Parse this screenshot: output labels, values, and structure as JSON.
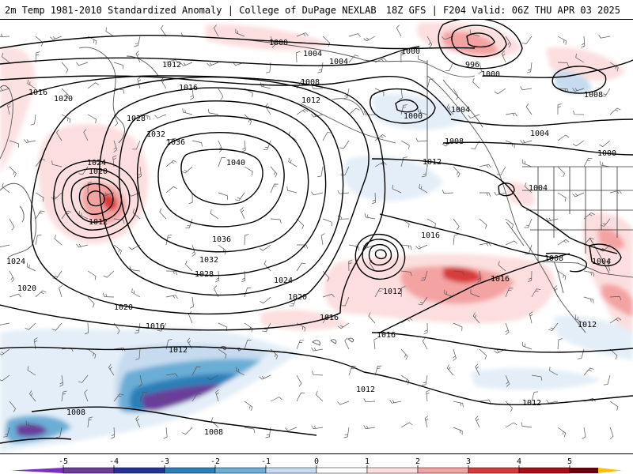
{
  "header": {
    "title_left": "2m Temp 1981-2010 Standardized Anomaly | College of DuPage NEXLAB",
    "title_right": "18Z GFS | F204 Valid: 06Z THU APR 03 2025"
  },
  "colorbar": {
    "ticks": [
      "-5",
      "-4",
      "-3",
      "-2",
      "-1",
      "0",
      "1",
      "2",
      "3",
      "4",
      "5"
    ],
    "colors": [
      "#6a3d9a",
      "#253494",
      "#2c7fb8",
      "#6baed6",
      "#c6dbef",
      "#ffffff",
      "#fcdede",
      "#f4a3a3",
      "#d73a3a",
      "#a50f15",
      "#67000d"
    ],
    "low_end_color": "#7b2fbe",
    "high_end_color": "#f5c400"
  },
  "isobar_labels": [
    {
      "text": "1000",
      "id": "a"
    },
    {
      "text": "1004",
      "id": "b"
    },
    {
      "text": "1004",
      "id": "c"
    },
    {
      "text": "1000",
      "id": "d"
    },
    {
      "text": "996",
      "id": "e"
    },
    {
      "text": "1000",
      "id": "f"
    },
    {
      "text": "1012",
      "id": "g"
    },
    {
      "text": "1016",
      "id": "h"
    },
    {
      "text": "1016",
      "id": "i"
    },
    {
      "text": "1008",
      "id": "j"
    },
    {
      "text": "1012",
      "id": "k"
    },
    {
      "text": "1020",
      "id": "l"
    },
    {
      "text": "1028",
      "id": "m"
    },
    {
      "text": "1000",
      "id": "n"
    },
    {
      "text": "1004",
      "id": "o"
    },
    {
      "text": "1008",
      "id": "p"
    },
    {
      "text": "1004",
      "id": "q"
    },
    {
      "text": "1032",
      "id": "r"
    },
    {
      "text": "1036",
      "id": "s"
    },
    {
      "text": "1008",
      "id": "t"
    },
    {
      "text": "1000",
      "id": "u"
    },
    {
      "text": "1024",
      "id": "v"
    },
    {
      "text": "1020",
      "id": "w"
    },
    {
      "text": "1040",
      "id": "x"
    },
    {
      "text": "1012",
      "id": "y"
    },
    {
      "text": "1004",
      "id": "z"
    },
    {
      "text": "1012",
      "id": "aa"
    },
    {
      "text": "1016",
      "id": "ab"
    },
    {
      "text": "1036",
      "id": "ac"
    },
    {
      "text": "1024",
      "id": "ad"
    },
    {
      "text": "1032",
      "id": "ae"
    },
    {
      "text": "1008",
      "id": "af"
    },
    {
      "text": "1004",
      "id": "ag"
    },
    {
      "text": "1028",
      "id": "ah"
    },
    {
      "text": "1016",
      "id": "ai"
    },
    {
      "text": "1020",
      "id": "aj"
    },
    {
      "text": "1024",
      "id": "ak"
    },
    {
      "text": "1012",
      "id": "al"
    },
    {
      "text": "1020",
      "id": "am"
    },
    {
      "text": "1020",
      "id": "an"
    },
    {
      "text": "1016",
      "id": "ao"
    },
    {
      "text": "1016",
      "id": "ap"
    },
    {
      "text": "1012",
      "id": "aq"
    },
    {
      "text": "1016",
      "id": "ar"
    },
    {
      "text": "1012",
      "id": "as"
    },
    {
      "text": "1012",
      "id": "at"
    },
    {
      "text": "1012",
      "id": "au"
    },
    {
      "text": "1008",
      "id": "av"
    },
    {
      "text": "1008",
      "id": "aw"
    }
  ]
}
